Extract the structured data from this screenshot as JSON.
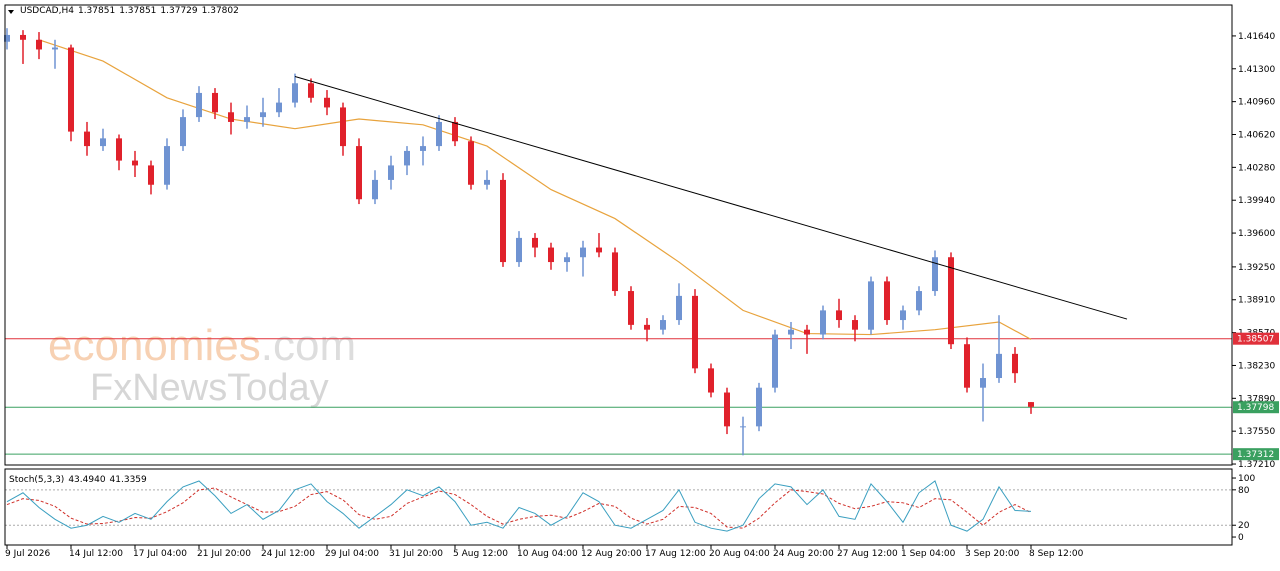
{
  "chart_data": {
    "type": "candlestick",
    "symbol": "USDCAD,H4",
    "header_ohlc": [
      1.37851,
      1.37851,
      1.37729,
      1.37802
    ],
    "watermark": {
      "brand": "economies",
      "suffix": ".com",
      "second": "FxNewsToday"
    },
    "up_color": "#6f93d2",
    "down_color": "#e0212b",
    "ylim": [
      1.372,
      1.4196
    ],
    "yticks": [
      {
        "value": 1.4164,
        "label": "1.41640"
      },
      {
        "value": 1.413,
        "label": "1.41300"
      },
      {
        "value": 1.4096,
        "label": "1.40960"
      },
      {
        "value": 1.4062,
        "label": "1.40620"
      },
      {
        "value": 1.4028,
        "label": "1.40280"
      },
      {
        "value": 1.3994,
        "label": "1.39940"
      },
      {
        "value": 1.396,
        "label": "1.39600"
      },
      {
        "value": 1.3925,
        "label": "1.39250"
      },
      {
        "value": 1.3891,
        "label": "1.38910"
      },
      {
        "value": 1.3857,
        "label": "1.38570"
      },
      {
        "value": 1.3823,
        "label": "1.38230"
      },
      {
        "value": 1.3789,
        "label": "1.37890"
      },
      {
        "value": 1.3755,
        "label": "1.37550"
      },
      {
        "value": 1.3721,
        "label": "1.37210"
      }
    ],
    "x_labels": [
      "9 Jul 2026",
      "14 Jul 12:00",
      "17 Jul 04:00",
      "21 Jul 20:00",
      "24 Jul 12:00",
      "29 Jul 04:00",
      "31 Jul 20:00",
      "5 Aug 12:00",
      "10 Aug 04:00",
      "12 Aug 20:00",
      "17 Aug 12:00",
      "20 Aug 04:00",
      "24 Aug 20:00",
      "27 Aug 12:00",
      "1 Sep 04:00",
      "3 Sep 20:00",
      "8 Sep 12:00"
    ],
    "x_label_every": 4,
    "ohlc": [
      [
        1.4158,
        1.4172,
        1.415,
        1.4165
      ],
      [
        1.4165,
        1.417,
        1.4135,
        1.416
      ],
      [
        1.416,
        1.4168,
        1.414,
        1.415
      ],
      [
        1.415,
        1.416,
        1.413,
        1.4152
      ],
      [
        1.4152,
        1.4155,
        1.4055,
        1.4065
      ],
      [
        1.4065,
        1.4075,
        1.404,
        1.405
      ],
      [
        1.405,
        1.4068,
        1.4045,
        1.4058
      ],
      [
        1.4058,
        1.4062,
        1.4025,
        1.4035
      ],
      [
        1.4035,
        1.4045,
        1.4018,
        1.403
      ],
      [
        1.403,
        1.4035,
        1.4,
        1.401
      ],
      [
        1.401,
        1.4058,
        1.4005,
        1.405
      ],
      [
        1.405,
        1.4088,
        1.4045,
        1.408
      ],
      [
        1.408,
        1.4112,
        1.4075,
        1.4105
      ],
      [
        1.4105,
        1.411,
        1.4078,
        1.4085
      ],
      [
        1.4085,
        1.4095,
        1.4062,
        1.4075
      ],
      [
        1.4075,
        1.4092,
        1.4068,
        1.408
      ],
      [
        1.408,
        1.41,
        1.407,
        1.4085
      ],
      [
        1.4085,
        1.411,
        1.408,
        1.4095
      ],
      [
        1.4095,
        1.4125,
        1.409,
        1.4115
      ],
      [
        1.4115,
        1.412,
        1.4095,
        1.41
      ],
      [
        1.41,
        1.4108,
        1.4082,
        1.409
      ],
      [
        1.409,
        1.4095,
        1.404,
        1.405
      ],
      [
        1.405,
        1.4058,
        1.399,
        1.3995
      ],
      [
        1.3995,
        1.4025,
        1.399,
        1.4015
      ],
      [
        1.4015,
        1.404,
        1.4005,
        1.403
      ],
      [
        1.403,
        1.405,
        1.402,
        1.4045
      ],
      [
        1.4045,
        1.406,
        1.403,
        1.405
      ],
      [
        1.405,
        1.4082,
        1.4045,
        1.4075
      ],
      [
        1.4075,
        1.408,
        1.405,
        1.4055
      ],
      [
        1.4055,
        1.406,
        1.4005,
        1.401
      ],
      [
        1.401,
        1.4025,
        1.4005,
        1.4015
      ],
      [
        1.4015,
        1.4022,
        1.3925,
        1.393
      ],
      [
        1.393,
        1.3962,
        1.3925,
        1.3955
      ],
      [
        1.3955,
        1.396,
        1.3935,
        1.3945
      ],
      [
        1.3945,
        1.395,
        1.3922,
        1.393
      ],
      [
        1.393,
        1.394,
        1.392,
        1.3935
      ],
      [
        1.3935,
        1.3952,
        1.3915,
        1.3945
      ],
      [
        1.3945,
        1.396,
        1.3935,
        1.394
      ],
      [
        1.394,
        1.3945,
        1.3895,
        1.39
      ],
      [
        1.39,
        1.3905,
        1.386,
        1.3865
      ],
      [
        1.3865,
        1.3872,
        1.3848,
        1.386
      ],
      [
        1.386,
        1.3875,
        1.3855,
        1.387
      ],
      [
        1.387,
        1.3908,
        1.3865,
        1.3895
      ],
      [
        1.3895,
        1.3902,
        1.3815,
        1.382
      ],
      [
        1.382,
        1.3825,
        1.379,
        1.3795
      ],
      [
        1.3795,
        1.38,
        1.3752,
        1.376
      ],
      [
        1.376,
        1.377,
        1.373,
        1.376
      ],
      [
        1.376,
        1.3805,
        1.3755,
        1.38
      ],
      [
        1.38,
        1.386,
        1.3795,
        1.3855
      ],
      [
        1.3855,
        1.3868,
        1.384,
        1.386
      ],
      [
        1.386,
        1.3865,
        1.3835,
        1.3855
      ],
      [
        1.3855,
        1.3885,
        1.385,
        1.388
      ],
      [
        1.388,
        1.3892,
        1.3862,
        1.387
      ],
      [
        1.387,
        1.3875,
        1.3848,
        1.386
      ],
      [
        1.386,
        1.3915,
        1.3855,
        1.391
      ],
      [
        1.391,
        1.3915,
        1.3865,
        1.387
      ],
      [
        1.387,
        1.3885,
        1.386,
        1.388
      ],
      [
        1.388,
        1.3905,
        1.3875,
        1.39
      ],
      [
        1.39,
        1.3942,
        1.3895,
        1.3935
      ],
      [
        1.3935,
        1.394,
        1.384,
        1.3845
      ],
      [
        1.3845,
        1.3852,
        1.3795,
        1.38
      ],
      [
        1.38,
        1.3825,
        1.3765,
        1.381
      ],
      [
        1.381,
        1.3875,
        1.3805,
        1.3835
      ],
      [
        1.3835,
        1.3842,
        1.3805,
        1.3815
      ],
      [
        1.37851,
        1.37851,
        1.37729,
        1.37802
      ]
    ],
    "moving_average": {
      "color": "#e8a33d",
      "x": [
        2,
        6,
        10,
        14,
        18,
        22,
        26,
        30,
        34,
        38,
        42,
        46,
        50,
        54,
        58,
        62,
        64
      ],
      "values": [
        1.416,
        1.4138,
        1.41,
        1.4078,
        1.4068,
        1.4078,
        1.4072,
        1.405,
        1.4005,
        1.3975,
        1.393,
        1.388,
        1.3856,
        1.3855,
        1.386,
        1.3868,
        1.385
      ]
    },
    "trendline": {
      "color": "#000000",
      "x": [
        18,
        70
      ],
      "y": [
        1.4122,
        1.3871
      ]
    },
    "levels": [
      {
        "value": 1.38507,
        "color": "#e0303a"
      },
      {
        "value": 1.37798,
        "color": "#3aa060"
      },
      {
        "value": 1.37312,
        "color": "#3aa060"
      }
    ],
    "stochastic": {
      "name": "Stoch(5,3,3)",
      "readout": [
        {
          "value": 43.494,
          "label": "43.4940"
        },
        41.3359
      ],
      "ylim": [
        -13.5,
        115.3
      ],
      "yticks": [
        100,
        80,
        20,
        0
      ],
      "levels": [
        80,
        20
      ],
      "main_color": "#3a9fc0",
      "signal_color": "#d0302a",
      "main": [
        60,
        75,
        50,
        30,
        15,
        20,
        35,
        25,
        40,
        30,
        60,
        85,
        95,
        70,
        40,
        55,
        30,
        45,
        80,
        90,
        60,
        40,
        15,
        35,
        55,
        80,
        70,
        85,
        60,
        20,
        25,
        15,
        50,
        40,
        20,
        35,
        75,
        60,
        20,
        15,
        30,
        45,
        80,
        25,
        15,
        10,
        20,
        65,
        90,
        85,
        55,
        80,
        35,
        30,
        90,
        60,
        25,
        75,
        95,
        20,
        10,
        30,
        85,
        45,
        43.494
      ],
      "signal": [
        55,
        65,
        62,
        52,
        32,
        22,
        23,
        27,
        33,
        32,
        43,
        58,
        80,
        83,
        68,
        55,
        42,
        43,
        52,
        72,
        77,
        63,
        38,
        30,
        35,
        57,
        68,
        78,
        72,
        55,
        35,
        22,
        30,
        35,
        37,
        32,
        43,
        57,
        52,
        32,
        22,
        30,
        52,
        50,
        40,
        17,
        15,
        32,
        58,
        80,
        77,
        73,
        57,
        48,
        52,
        60,
        58,
        50,
        65,
        63,
        42,
        20,
        42,
        55,
        41.3359
      ]
    }
  }
}
